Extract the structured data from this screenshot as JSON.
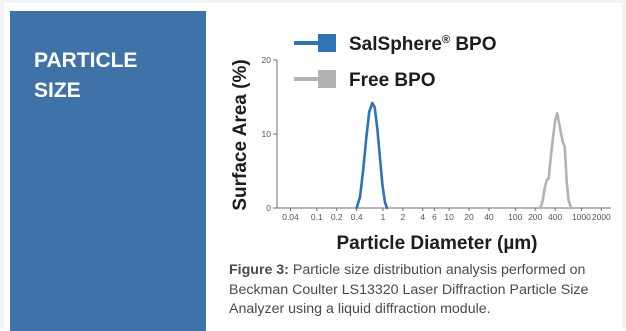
{
  "panel": {
    "title_line1": "PARTICLE",
    "title_line2": "SIZE"
  },
  "caption": {
    "label": "Figure 3:",
    "text": "Particle size distribution analysis performed on Beckman Coulter LS13320 Laser Diffraction Particle Size Analyzer using a liquid diffraction module."
  },
  "colors": {
    "panel": "#3f73a8",
    "series_salsphere": "#2e74b5",
    "series_free": "#b3b3b3"
  },
  "chart_data": {
    "type": "line",
    "xscale": "log",
    "xlabel": "Particle Diameter (µm)",
    "ylabel": "Surface Area (%)",
    "xlim": [
      0.025,
      2800
    ],
    "ylim": [
      0,
      20
    ],
    "x_ticks": [
      0.04,
      0.1,
      0.2,
      0.4,
      1,
      2,
      4,
      6,
      10,
      20,
      40,
      100,
      200,
      400,
      1000,
      2000
    ],
    "x_tick_labels": [
      "0.04",
      "0.1",
      "0.2",
      "0.4",
      "1",
      "2",
      "4",
      "6",
      "10",
      "20",
      "40",
      "100",
      "200",
      "400",
      "1000",
      "2000"
    ],
    "y_ticks": [
      0,
      10,
      20
    ],
    "y_tick_labels": [
      "0",
      "10",
      "20"
    ],
    "grid": false,
    "legend": "top-left",
    "series": [
      {
        "name": "SalSphere® BPO",
        "legend_main": "SalSphere",
        "legend_sup": "®",
        "legend_tail": " BPO",
        "color": "#2e74b5",
        "x": [
          0.4,
          0.45,
          0.5,
          0.56,
          0.62,
          0.69,
          0.75,
          0.82,
          0.9,
          0.98,
          1.07,
          1.15
        ],
        "y": [
          0,
          1.5,
          5.0,
          9.5,
          13.0,
          14.2,
          13.6,
          10.8,
          6.8,
          3.2,
          0.8,
          0
        ]
      },
      {
        "name": "Free BPO",
        "legend_main": "Free BPO",
        "legend_sup": "",
        "legend_tail": "",
        "color": "#b3b3b3",
        "x": [
          240,
          260,
          280,
          300,
          320,
          350,
          400,
          430,
          470,
          520,
          560,
          600,
          640,
          700
        ],
        "y": [
          0,
          1.0,
          2.8,
          3.8,
          4.0,
          7.5,
          11.8,
          12.8,
          11.0,
          9.0,
          8.2,
          3.5,
          1.0,
          0
        ]
      }
    ]
  }
}
